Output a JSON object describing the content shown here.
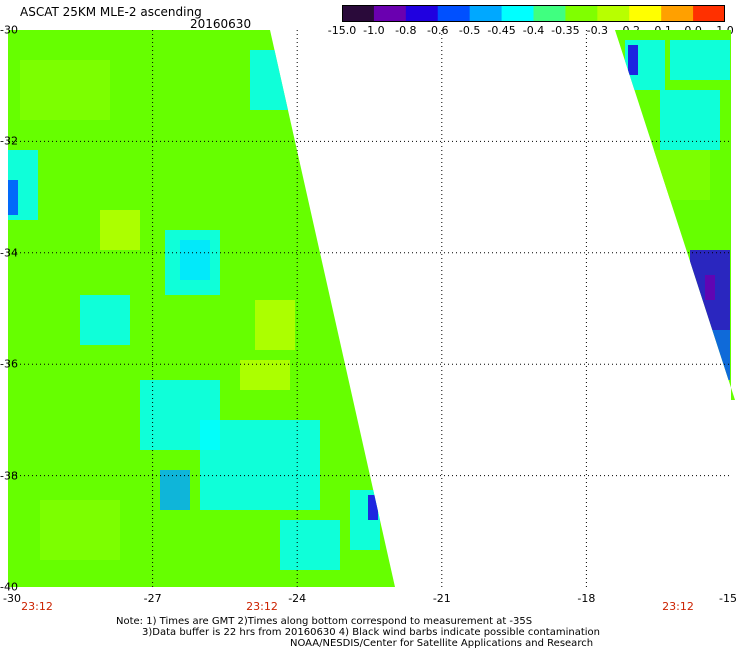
{
  "header": {
    "title": "ASCAT 25KM MLE-2 ascending",
    "date": "20160630"
  },
  "colorbar": {
    "labels": [
      "-15.0",
      "-1.0",
      "-0.8",
      "-0.6",
      "-0.5",
      "-0.45",
      "-0.4",
      "-0.35",
      "-0.3",
      "-0.2",
      "-0.1",
      "0.0",
      "1.0"
    ],
    "colors": [
      "#2a0a3a",
      "#6a00b0",
      "#2000e0",
      "#0050ff",
      "#00a8ff",
      "#00ffff",
      "#40ff80",
      "#80ff00",
      "#b8ff00",
      "#ffff00",
      "#ffa000",
      "#ff3000"
    ]
  },
  "map": {
    "lon_range": [
      -30,
      -15
    ],
    "lat_range": [
      -40,
      -30
    ],
    "lat_labels": [
      "-30",
      "-32",
      "-34",
      "-36",
      "-38",
      "-40"
    ],
    "lon_labels": [
      "-30",
      "-27",
      "-24",
      "-21",
      "-18",
      "-15"
    ],
    "time_labels": [
      "23:12",
      "23:12",
      "23:12"
    ],
    "background_color": "#66ff00"
  },
  "footer": {
    "note1": "Note: 1) Times are GMT 2)Times along bottom correspond to measurement at -35S",
    "note2": "3)Data buffer is 22 hrs from 20160630 4) Black wind barbs indicate possible contamination",
    "note3": "NOAA/NESDIS/Center for Satellite Applications and Research"
  }
}
